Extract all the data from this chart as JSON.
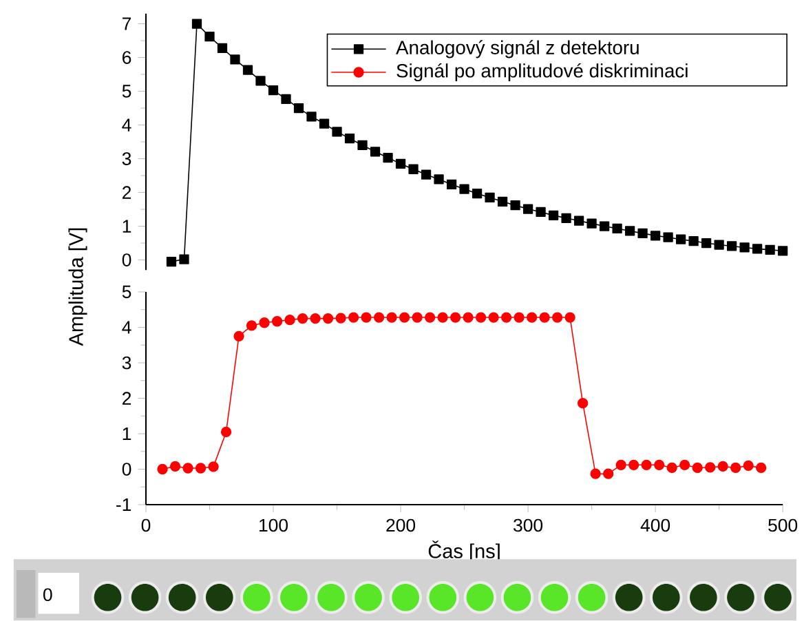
{
  "chart_data": [
    {
      "type": "line",
      "ylabel": "Amplituda [V]",
      "xlim": [
        0,
        500
      ],
      "ylim": [
        -0.3,
        7.3
      ],
      "yticks": [
        0,
        1,
        2,
        3,
        4,
        5,
        6,
        7
      ],
      "tick_labels": "y",
      "marker": "square",
      "legend": "top right",
      "series": [
        {
          "name": "Analogový signál z detektoru",
          "color": "#000000",
          "x": [
            20,
            30,
            40,
            50,
            60,
            70,
            80,
            90,
            100,
            110,
            120,
            130,
            140,
            150,
            160,
            170,
            180,
            190,
            200,
            210,
            220,
            230,
            240,
            250,
            260,
            270,
            280,
            290,
            300,
            310,
            320,
            330,
            340,
            350,
            360,
            370,
            380,
            390,
            400,
            410,
            420,
            430,
            440,
            450,
            460,
            470,
            480,
            490,
            500
          ],
          "values": [
            -0.05,
            0.02,
            7.0,
            6.62,
            6.28,
            5.94,
            5.63,
            5.31,
            5.03,
            4.77,
            4.5,
            4.25,
            4.04,
            3.8,
            3.6,
            3.4,
            3.21,
            3.03,
            2.85,
            2.69,
            2.53,
            2.39,
            2.24,
            2.1,
            1.97,
            1.85,
            1.73,
            1.62,
            1.51,
            1.42,
            1.32,
            1.24,
            1.16,
            1.08,
            1.0,
            0.93,
            0.86,
            0.79,
            0.72,
            0.67,
            0.61,
            0.56,
            0.5,
            0.45,
            0.41,
            0.37,
            0.33,
            0.3,
            0.27
          ]
        }
      ]
    },
    {
      "type": "line",
      "xlabel": "Čas [ns]",
      "xlim": [
        0,
        500
      ],
      "xticks": [
        0,
        100,
        200,
        300,
        400,
        500
      ],
      "ylim": [
        -1,
        5
      ],
      "yticks": [
        -1,
        0,
        1,
        2,
        3,
        4,
        5
      ],
      "marker": "circle",
      "annotations": [
        "0"
      ],
      "series": [
        {
          "name": "Signál po amplitudové diskriminaci",
          "color": "#ff0000",
          "x": [
            13,
            23,
            33,
            43,
            53,
            63,
            73,
            83,
            93,
            103,
            113,
            123,
            133,
            143,
            153,
            163,
            173,
            183,
            193,
            203,
            213,
            223,
            233,
            243,
            253,
            263,
            273,
            283,
            293,
            303,
            313,
            323,
            333,
            343,
            353,
            363,
            373,
            383,
            393,
            403,
            413,
            423,
            433,
            443,
            453,
            463,
            473,
            483
          ],
          "values": [
            0.0,
            0.08,
            0.03,
            0.03,
            0.07,
            1.05,
            3.75,
            4.05,
            4.13,
            4.17,
            4.21,
            4.25,
            4.25,
            4.25,
            4.26,
            4.28,
            4.28,
            4.28,
            4.28,
            4.28,
            4.28,
            4.28,
            4.28,
            4.28,
            4.28,
            4.28,
            4.28,
            4.28,
            4.28,
            4.28,
            4.28,
            4.28,
            4.28,
            1.86,
            -0.13,
            -0.13,
            0.12,
            0.12,
            0.12,
            0.12,
            0.04,
            0.12,
            0.04,
            0.05,
            0.08,
            0.04,
            0.1,
            0.04
          ]
        }
      ]
    }
  ]
}
